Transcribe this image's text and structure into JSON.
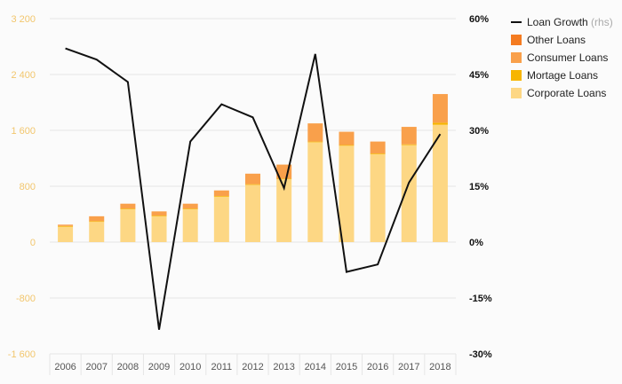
{
  "chart_data": {
    "type": "bar",
    "categories": [
      "2006",
      "2007",
      "2008",
      "2009",
      "2010",
      "2011",
      "2012",
      "2013",
      "2014",
      "2015",
      "2016",
      "2017",
      "2018"
    ],
    "series": [
      {
        "name": "Corporate Loans",
        "kind": "bar",
        "color": "#fdd784",
        "values": [
          220,
          290,
          470,
          370,
          470,
          650,
          820,
          900,
          1430,
          1380,
          1260,
          1390,
          1680
        ]
      },
      {
        "name": "Mortage Loans",
        "kind": "bar",
        "color": "#f7b500",
        "values": [
          10,
          10,
          10,
          10,
          10,
          10,
          10,
          10,
          10,
          10,
          10,
          10,
          30
        ]
      },
      {
        "name": "Consumer Loans",
        "kind": "bar",
        "color": "#f9a04b",
        "values": [
          20,
          70,
          70,
          60,
          70,
          80,
          150,
          200,
          260,
          190,
          170,
          250,
          410
        ]
      },
      {
        "name": "Other Loans",
        "kind": "bar",
        "color": "#f47b20",
        "values": [
          0,
          0,
          0,
          0,
          0,
          0,
          0,
          0,
          0,
          0,
          0,
          0,
          0
        ]
      },
      {
        "name": "Loan Growth",
        "name_suffix": "(rhs)",
        "kind": "line",
        "axis": "right",
        "color": "#111111",
        "values": [
          52,
          49,
          43,
          -23.5,
          27,
          37,
          33.5,
          14.5,
          50.5,
          -8,
          -6,
          16,
          29
        ]
      }
    ],
    "y_left": {
      "ticks": [
        "3 200",
        "2 400",
        "1 600",
        "800",
        "0",
        "-800",
        "-1 600"
      ],
      "values": [
        3200,
        2400,
        1600,
        800,
        0,
        -800,
        -1600
      ],
      "range": [
        -1600,
        3200
      ]
    },
    "y_right": {
      "ticks": [
        "60%",
        "45%",
        "30%",
        "15%",
        "0%",
        "-15%",
        "-30%"
      ],
      "values": [
        60,
        45,
        30,
        15,
        0,
        -15,
        -30
      ],
      "range": [
        -30,
        60
      ]
    },
    "legend": {
      "position": "right",
      "order": [
        "Loan Growth",
        "Other Loans",
        "Consumer Loans",
        "Mortage Loans",
        "Corporate Loans"
      ]
    },
    "title": "",
    "xlabel": "",
    "ylabel": "",
    "grid": true
  }
}
